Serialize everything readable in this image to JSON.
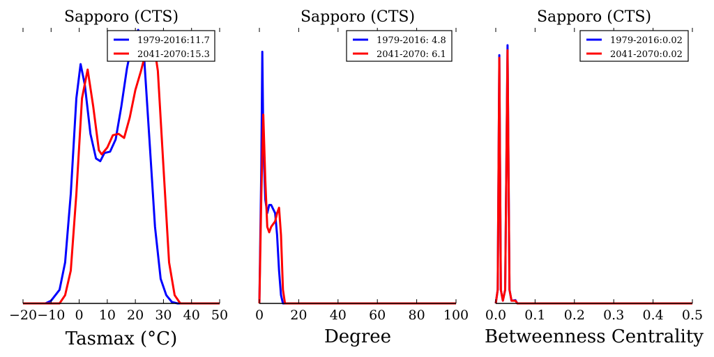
{
  "chart_data": [
    {
      "type": "line",
      "title": "Sapporo (CTS)",
      "xlabel": "Tasmax ($^\\circ$C)",
      "xlabel_display": "Tasmax (°C)",
      "ylabel": "",
      "xlim": [
        -20,
        50
      ],
      "ylim": [
        0,
        1
      ],
      "xticks": [
        -20,
        -10,
        0,
        10,
        20,
        30,
        40,
        50
      ],
      "xtick_labels": [
        "−20",
        "−10",
        "0",
        "10",
        "20",
        "30",
        "40",
        "50"
      ],
      "legend_position": "top-right",
      "series": [
        {
          "name": "1979-2016:11.7",
          "color": "#0000ff",
          "x": [
            -20,
            -12,
            -10,
            -7,
            -5,
            -3,
            -1,
            0.5,
            2,
            4,
            6,
            7.5,
            9,
            11,
            13,
            15,
            17,
            19,
            21,
            23,
            25,
            27,
            29,
            31,
            33,
            35,
            50
          ],
          "y": [
            0,
            0,
            0.01,
            0.05,
            0.15,
            0.4,
            0.75,
            0.875,
            0.8,
            0.62,
            0.53,
            0.52,
            0.55,
            0.555,
            0.6,
            0.72,
            0.86,
            0.96,
            1.0,
            0.92,
            0.6,
            0.28,
            0.09,
            0.03,
            0.005,
            0,
            0
          ]
        },
        {
          "name": "2041-2070:15.3",
          "color": "#ff0000",
          "x": [
            -20,
            -7,
            -5,
            -3,
            -1,
            1,
            3,
            5,
            7,
            8,
            10,
            12,
            14,
            16,
            18,
            20,
            22,
            24,
            26,
            28,
            30,
            32,
            34,
            36,
            50
          ],
          "y": [
            0,
            0,
            0.03,
            0.12,
            0.4,
            0.75,
            0.855,
            0.72,
            0.56,
            0.545,
            0.57,
            0.615,
            0.62,
            0.605,
            0.68,
            0.78,
            0.85,
            0.93,
            0.99,
            0.85,
            0.5,
            0.15,
            0.03,
            0,
            0
          ]
        }
      ]
    },
    {
      "type": "line",
      "title": "Sapporo (CTS)",
      "xlabel": "Degree",
      "xlabel_display": "Degree",
      "ylabel": "",
      "xlim": [
        0,
        100
      ],
      "ylim": [
        0,
        1
      ],
      "xticks": [
        0,
        20,
        40,
        60,
        80,
        100
      ],
      "xtick_labels": [
        "0",
        "20",
        "40",
        "60",
        "80",
        "100"
      ],
      "legend_position": "top-right",
      "series": [
        {
          "name": "1979-2016: 4.8",
          "color": "#0000ff",
          "x": [
            0,
            1,
            1.5,
            2,
            3,
            4,
            5,
            6,
            8,
            9,
            10,
            11,
            12,
            100
          ],
          "y": [
            0,
            0.5,
            0.92,
            0.6,
            0.38,
            0.33,
            0.36,
            0.36,
            0.33,
            0.25,
            0.12,
            0.03,
            0,
            0
          ]
        },
        {
          "name": "2041-2070: 6.1",
          "color": "#ff0000",
          "x": [
            0,
            1,
            2,
            3,
            4,
            5,
            6,
            7,
            8,
            9,
            10,
            11,
            12,
            13,
            100
          ],
          "y": [
            0,
            0.4,
            0.69,
            0.45,
            0.28,
            0.26,
            0.28,
            0.29,
            0.3,
            0.33,
            0.35,
            0.25,
            0.05,
            0,
            0
          ]
        }
      ]
    },
    {
      "type": "line",
      "title": "Sapporo (CTS)",
      "xlabel": "Betweenness Centrality",
      "xlabel_display": "Betweenness Centrality",
      "ylabel": "",
      "xlim": [
        0,
        0.5
      ],
      "ylim": [
        0,
        1
      ],
      "xticks": [
        0,
        0.1,
        0.2,
        0.3,
        0.4,
        0.5
      ],
      "xtick_labels": [
        "0.0",
        "0.1",
        "0.2",
        "0.3",
        "0.4",
        "0.5"
      ],
      "legend_position": "top-right",
      "series": [
        {
          "name": "1979-2016:0.02",
          "color": "#0000ff",
          "x": [
            0,
            0.005,
            0.009,
            0.013,
            0.018,
            0.024,
            0.03,
            0.035,
            0.04,
            0.05,
            0.055,
            0.5
          ],
          "y": [
            0,
            0.05,
            0.908,
            0.05,
            0.01,
            0.05,
            0.944,
            0.05,
            0.01,
            0.012,
            0,
            0
          ]
        },
        {
          "name": "2041-2070:0.02",
          "color": "#ff0000",
          "x": [
            0,
            0.005,
            0.009,
            0.013,
            0.018,
            0.024,
            0.03,
            0.035,
            0.04,
            0.05,
            0.055,
            0.5
          ],
          "y": [
            0,
            0.05,
            0.898,
            0.05,
            0.01,
            0.05,
            0.926,
            0.05,
            0.01,
            0.01,
            0,
            0
          ]
        }
      ]
    }
  ]
}
